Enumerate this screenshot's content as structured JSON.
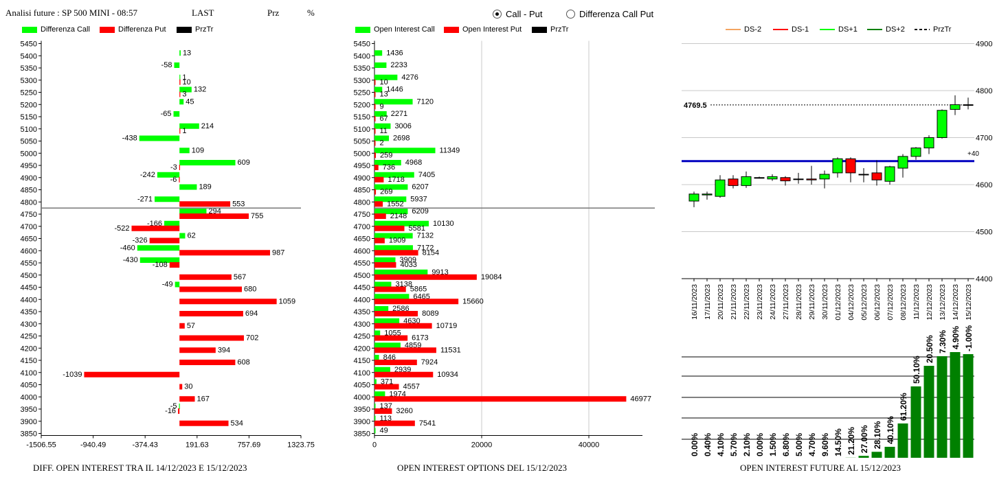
{
  "header": {
    "title": "Analisi future : SP 500 MINI - 08:57",
    "last": "LAST",
    "prz": "Prz",
    "pct": "%"
  },
  "mode": {
    "option1": "Call - Put",
    "option2": "Differenza Call Put",
    "selected": "Call - Put"
  },
  "colors": {
    "green": "#00ff00",
    "red": "#ff0000",
    "dark_green": "#008000",
    "blue": "#0000c0",
    "orange": "#f4a460"
  },
  "captions": {
    "left": "DIFF. OPEN INTEREST TRA IL 14/12/2023 E 15/12/2023",
    "middle": "OPEN INTEREST OPTIONS DEL 15/12/2023",
    "right": "OPEN INTEREST FUTURE AL 15/12/2023"
  },
  "chart_data": [
    {
      "id": "diff",
      "type": "bar",
      "orientation": "horizontal",
      "legend": [
        "Differenza Call",
        "Differenza Put",
        "PrzTr"
      ],
      "strikes": [
        5450,
        5400,
        5350,
        5300,
        5250,
        5200,
        5150,
        5100,
        5050,
        5000,
        4950,
        4900,
        4850,
        4800,
        4750,
        4700,
        4650,
        4600,
        4550,
        4500,
        4450,
        4400,
        4350,
        4300,
        4250,
        4200,
        4150,
        4100,
        4050,
        4000,
        3950,
        3900,
        3850
      ],
      "series": [
        {
          "name": "Differenza Call",
          "values": [
            null,
            13,
            -58,
            1,
            132,
            45,
            -65,
            214,
            -438,
            109,
            609,
            -242,
            189,
            -271,
            294,
            -166,
            62,
            -460,
            -430,
            null,
            -49,
            null,
            null,
            null,
            null,
            null,
            null,
            null,
            null,
            null,
            -5,
            null,
            null
          ]
        },
        {
          "name": "Differenza Put",
          "values": [
            null,
            null,
            null,
            10,
            3,
            null,
            null,
            1,
            null,
            null,
            -3,
            -6,
            null,
            553,
            755,
            -522,
            -326,
            987,
            -108,
            567,
            680,
            1059,
            694,
            57,
            702,
            394,
            608,
            -1039,
            30,
            167,
            -16,
            534,
            null
          ]
        }
      ],
      "xticks": [
        -1506.55,
        -940.49,
        -374.43,
        191.63,
        757.69,
        1323.75
      ],
      "xlim": [
        -1506.55,
        1323.75
      ],
      "price_line_between": [
        4800,
        4750
      ]
    },
    {
      "id": "oi",
      "type": "bar",
      "orientation": "horizontal",
      "legend": [
        "Open Interest Call",
        "Open Interest Put",
        "PrzTr"
      ],
      "strikes": [
        5450,
        5400,
        5350,
        5300,
        5250,
        5200,
        5150,
        5100,
        5050,
        5000,
        4950,
        4900,
        4850,
        4800,
        4750,
        4700,
        4650,
        4600,
        4550,
        4500,
        4450,
        4400,
        4350,
        4300,
        4250,
        4200,
        4150,
        4100,
        4050,
        4000,
        3950,
        3900,
        3850
      ],
      "series": [
        {
          "name": "Open Interest Call",
          "values": [
            null,
            1436,
            2233,
            4276,
            1446,
            7120,
            2271,
            3006,
            2698,
            11349,
            4968,
            7405,
            6207,
            5937,
            6209,
            10130,
            7132,
            7172,
            3909,
            9913,
            3138,
            6465,
            2586,
            4630,
            1055,
            4859,
            846,
            2939,
            371,
            1974,
            137,
            113,
            49
          ]
        },
        {
          "name": "Open Interest Put",
          "values": [
            null,
            null,
            null,
            10,
            13,
            9,
            67,
            11,
            2,
            259,
            736,
            1718,
            269,
            1552,
            2148,
            5581,
            1909,
            8154,
            4033,
            19084,
            5865,
            15660,
            8089,
            10719,
            6173,
            11531,
            7924,
            10934,
            4557,
            46977,
            3260,
            7541,
            null
          ]
        }
      ],
      "xticks": [
        0,
        20000,
        40000
      ],
      "xlim": [
        0,
        50000
      ],
      "price_line_between": [
        4800,
        4750
      ]
    },
    {
      "id": "future",
      "type": "candlestick",
      "legend": [
        "DS-2",
        "DS-1",
        "DS+1",
        "DS+2",
        "PrzTr"
      ],
      "dates": [
        "16/11/2023",
        "17/11/2023",
        "20/11/2023",
        "21/11/2023",
        "22/11/2023",
        "23/11/2023",
        "24/11/2023",
        "27/11/2023",
        "28/11/2023",
        "29/11/2023",
        "30/11/2023",
        "01/12/2023",
        "04/12/2023",
        "05/12/2023",
        "06/12/2023",
        "07/12/2023",
        "08/12/2023",
        "11/12/2023",
        "12/12/2023",
        "13/12/2023",
        "14/12/2023",
        "15/12/2023"
      ],
      "ohlc": [
        [
          4565,
          4585,
          4552,
          4580
        ],
        [
          4578,
          4585,
          4568,
          4580
        ],
        [
          4575,
          4620,
          4572,
          4610
        ],
        [
          4612,
          4620,
          4592,
          4598
        ],
        [
          4598,
          4628,
          4593,
          4617
        ],
        [
          4615,
          4617,
          4613,
          4615
        ],
        [
          4612,
          4622,
          4608,
          4617
        ],
        [
          4615,
          4618,
          4598,
          4608
        ],
        [
          4612,
          4625,
          4602,
          4612
        ],
        [
          4612,
          4640,
          4600,
          4610
        ],
        [
          4612,
          4630,
          4592,
          4622
        ],
        [
          4625,
          4658,
          4615,
          4655
        ],
        [
          4655,
          4658,
          4605,
          4625
        ],
        [
          4622,
          4635,
          4605,
          4622
        ],
        [
          4625,
          4652,
          4598,
          4610
        ],
        [
          4607,
          4640,
          4600,
          4638
        ],
        [
          4635,
          4665,
          4615,
          4660
        ],
        [
          4660,
          4680,
          4653,
          4678
        ],
        [
          4678,
          4705,
          4665,
          4700
        ],
        [
          4700,
          4760,
          4698,
          4758
        ],
        [
          4760,
          4790,
          4748,
          4770
        ],
        [
          4770,
          4785,
          4760,
          4769.5
        ]
      ],
      "ylim": [
        4400,
        4900
      ],
      "yticks": [
        4400,
        4500,
        4600,
        4700,
        4800,
        4900
      ],
      "last_price": "4769.5",
      "blue_level": 4650,
      "blue_label": "+40"
    },
    {
      "id": "future_pct",
      "type": "bar",
      "categories": [
        "16/11/2023",
        "17/11/2023",
        "20/11/2023",
        "21/11/2023",
        "22/11/2023",
        "23/11/2023",
        "24/11/2023",
        "27/11/2023",
        "28/11/2023",
        "29/11/2023",
        "30/11/2023",
        "01/12/2023",
        "04/12/2023",
        "05/12/2023",
        "06/12/2023",
        "07/12/2023",
        "08/12/2023",
        "11/12/2023",
        "12/12/2023",
        "13/12/2023",
        "14/12/2023",
        "15/12/2023"
      ],
      "labels": [
        "0.00%",
        "0.40%",
        "4.10%",
        "5.70%",
        "2.10%",
        "0.00%",
        "1.50%",
        "6.80%",
        "5.00%",
        "4.70%",
        "9.60%",
        "14.50%",
        "21.20%",
        "27.00%",
        "28.10%",
        "40.10%",
        "61.20%",
        "50.10%",
        "20.50%",
        "7.30%",
        "4.90%",
        "-1.00%"
      ],
      "values": [
        0,
        0,
        0,
        0,
        0,
        0,
        0,
        0,
        0,
        0,
        0,
        0,
        0.2,
        2.8,
        8.7,
        16,
        50,
        104,
        134,
        148,
        154,
        151
      ]
    }
  ]
}
